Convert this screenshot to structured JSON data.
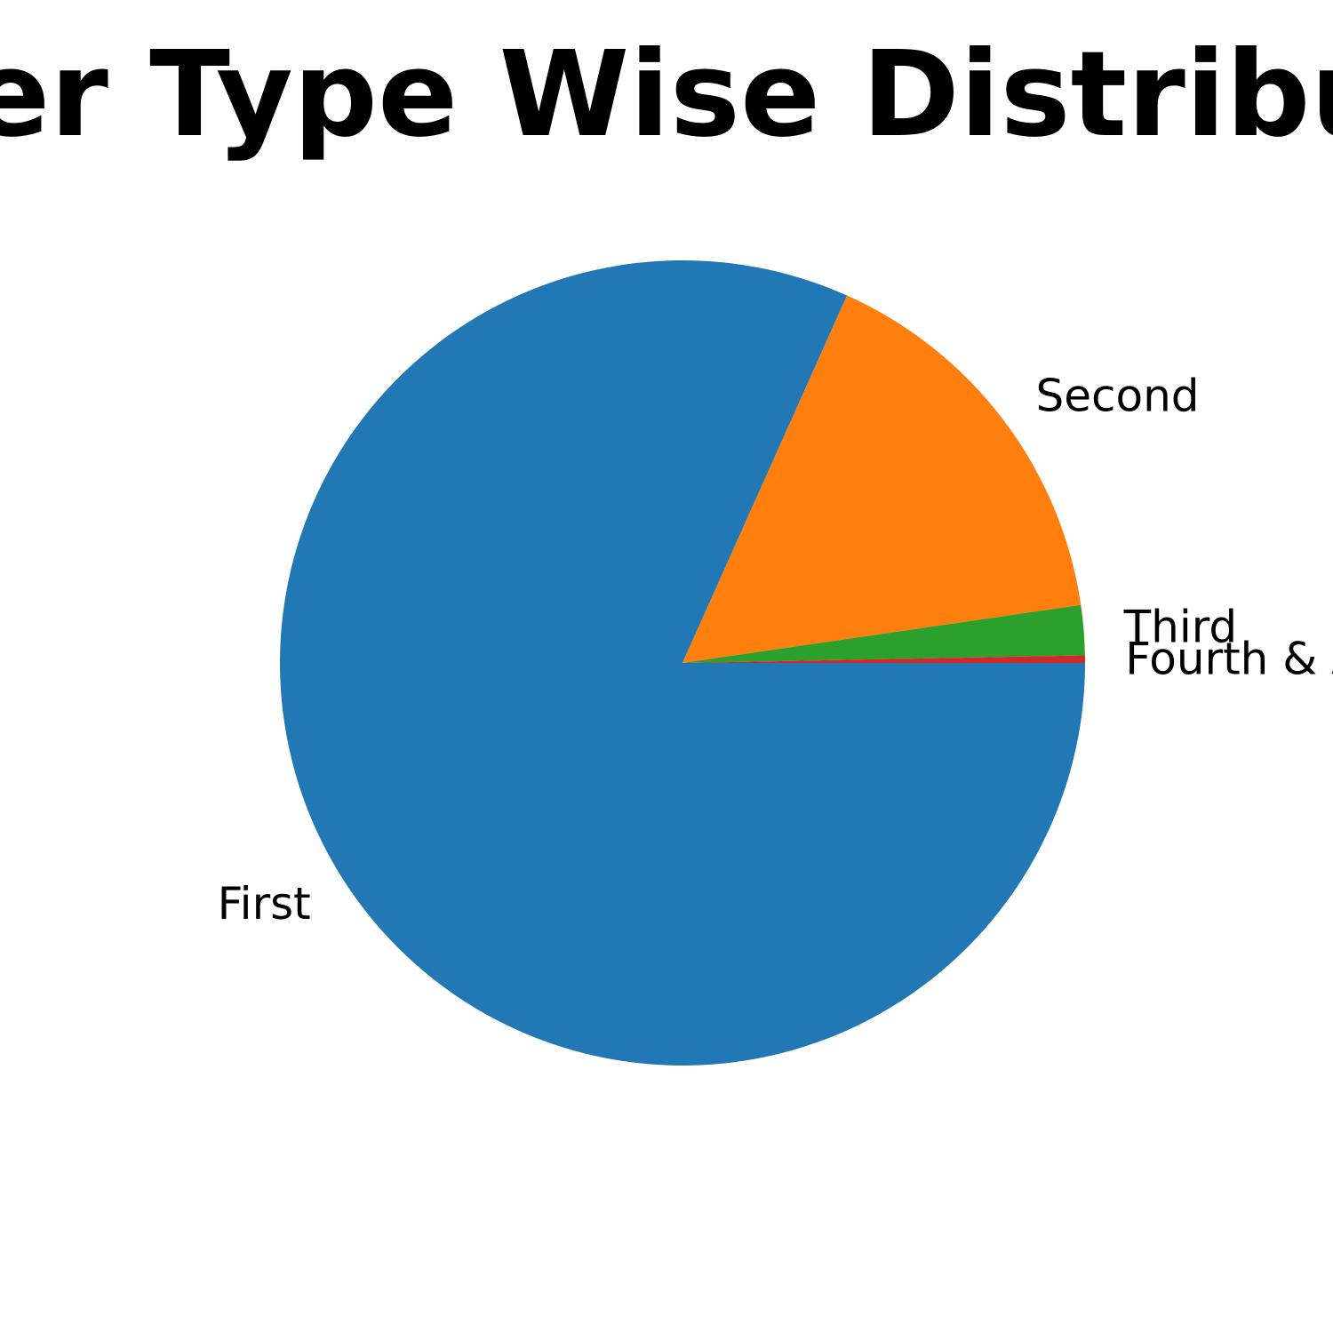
{
  "chart_data": {
    "type": "pie",
    "title": "Owner Type Wise Distribution",
    "start_angle_deg": 0,
    "direction": "clockwise",
    "slices": [
      {
        "label": "First",
        "value": 81.7,
        "color": "#2178b4"
      },
      {
        "label": "Second",
        "value": 16.0,
        "color": "#ff7f0e"
      },
      {
        "label": "Third",
        "value": 2.0,
        "color": "#2ca02c"
      },
      {
        "label": "Fourth & Above",
        "value": 0.3,
        "color": "#d62728"
      }
    ]
  }
}
